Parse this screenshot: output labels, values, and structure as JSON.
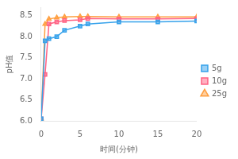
{
  "chart_data": {
    "type": "line",
    "xlabel": "时间(分钟)",
    "ylabel": "pH值",
    "x": [
      0,
      0.5,
      1,
      2,
      3,
      5,
      6,
      10,
      15,
      20
    ],
    "series": [
      {
        "name": "5g",
        "marker": "square",
        "values": [
          6.05,
          7.9,
          7.95,
          8.0,
          8.15,
          8.25,
          8.3,
          8.35,
          8.35,
          8.37
        ]
      },
      {
        "name": "10g",
        "marker": "square",
        "values": [
          6.05,
          7.1,
          8.3,
          8.35,
          8.38,
          8.4,
          8.43,
          8.42,
          8.42,
          8.43
        ]
      },
      {
        "name": "25g",
        "marker": "triangle",
        "values": [
          6.05,
          8.3,
          8.42,
          8.45,
          8.47,
          8.48,
          8.48,
          8.47,
          8.47,
          8.47
        ]
      }
    ],
    "xlim": [
      0,
      20
    ],
    "xticks": [
      0,
      5,
      10,
      15,
      20
    ],
    "ylim": [
      6.0,
      8.7
    ],
    "yticks": [
      {
        "value": 6.0,
        "label": "6.0"
      },
      6.5,
      {
        "value": 7.0,
        "label": "7.0"
      },
      7.5,
      {
        "value": 8.0,
        "label": "8.0"
      },
      8.5
    ],
    "grid": false,
    "legend": "right"
  }
}
